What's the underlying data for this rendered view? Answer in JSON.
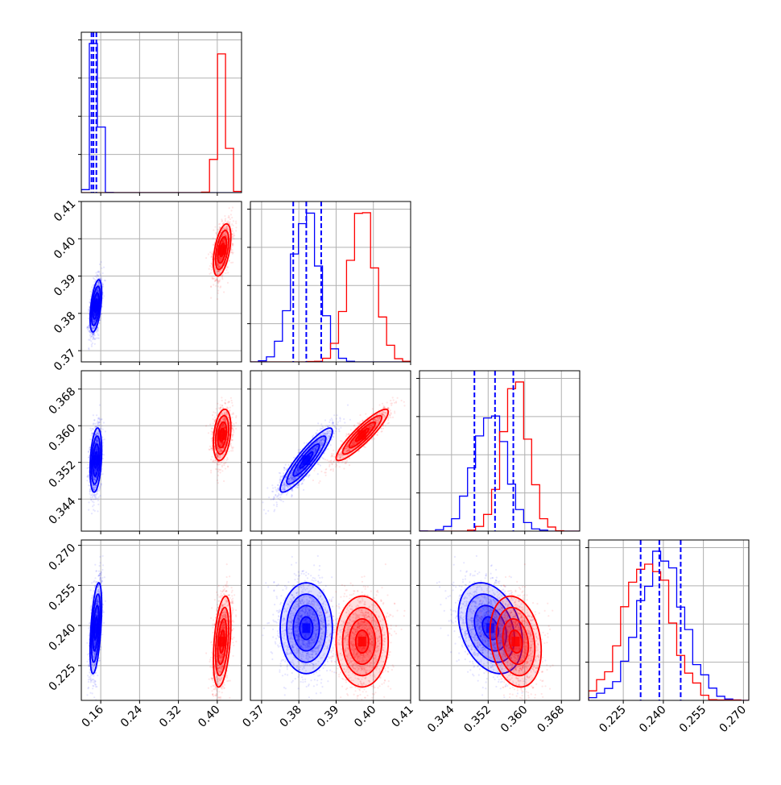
{
  "figure": {
    "kind": "corner-plot",
    "colors": {
      "series_a": "#0000ff",
      "series_b": "#ff0000",
      "grid": "#b0b0b0"
    },
    "dashed_lines_color": "#0000ff"
  },
  "chart_data": {
    "type": "corner",
    "title": "",
    "parameters": [
      {
        "index": 0,
        "range": [
          0.12,
          0.45
        ],
        "tick_labels": [
          "0.16",
          "0.24",
          "0.32",
          "0.40"
        ],
        "ticks": [
          0.16,
          0.24,
          0.32,
          0.4
        ]
      },
      {
        "index": 1,
        "range": [
          0.367,
          0.41
        ],
        "tick_labels": [
          "0.37",
          "0.38",
          "0.39",
          "0.40",
          "0.41"
        ],
        "ticks": [
          0.37,
          0.38,
          0.39,
          0.4,
          0.41
        ]
      },
      {
        "index": 2,
        "range": [
          0.337,
          0.372
        ],
        "tick_labels": [
          "0.344",
          "0.352",
          "0.360",
          "0.368"
        ],
        "ticks": [
          0.344,
          0.352,
          0.36,
          0.368
        ]
      },
      {
        "index": 3,
        "range": [
          0.212,
          0.272
        ],
        "tick_labels": [
          "0.225",
          "0.240",
          "0.255",
          "0.270"
        ],
        "ticks": [
          0.225,
          0.24,
          0.255,
          0.27
        ]
      }
    ],
    "series": [
      {
        "name": "",
        "color": "#0000ff",
        "means": [
          0.15,
          0.382,
          0.3525,
          0.239
        ],
        "stds": [
          0.006,
          0.0035,
          0.0035,
          0.0085
        ],
        "correlations": {
          "0-1": 0.5,
          "0-2": 0.3,
          "0-3": 0.5,
          "1-2": 0.9,
          "1-3": 0.0,
          "2-3": -0.3
        },
        "quantiles": [
          [
            0.141,
            0.145,
            0.151
          ],
          [
            0.3785,
            0.382,
            0.386
          ],
          [
            0.349,
            0.3535,
            0.3575
          ],
          [
            0.2315,
            0.2385,
            0.2465
          ]
        ]
      },
      {
        "name": "",
        "color": "#ff0000",
        "means": [
          0.41,
          0.397,
          0.358,
          0.234
        ],
        "stds": [
          0.009,
          0.0035,
          0.0028,
          0.0085
        ],
        "correlations": {
          "0-1": 0.5,
          "0-2": 0.3,
          "0-3": 0.4,
          "1-2": 0.9,
          "1-3": 0.0,
          "2-3": -0.2
        }
      }
    ],
    "grid": true,
    "legend": "none"
  }
}
